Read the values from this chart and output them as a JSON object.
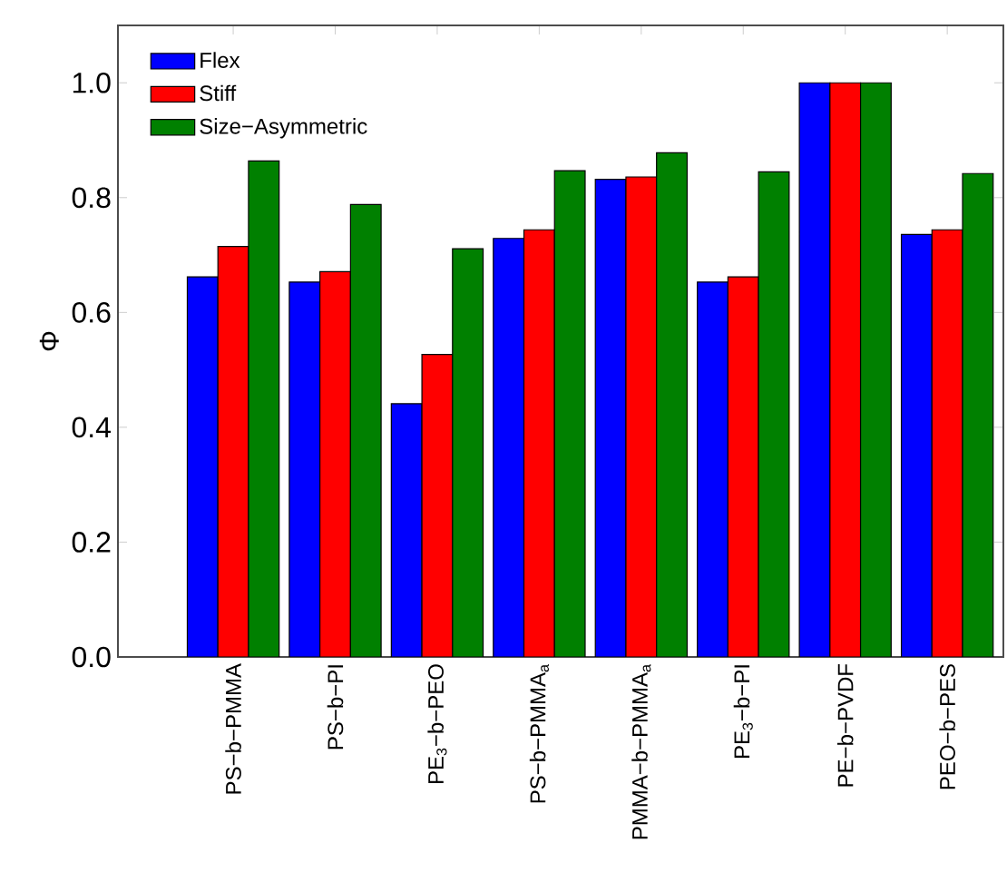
{
  "chart_data": {
    "type": "bar",
    "ylabel": "Φ",
    "categories": [
      "PS−b−PMMA",
      "PS−b−PI",
      "PE$_{3}$−b−PEO",
      "PS−b−PMMA$_{a}$",
      "PMMA−b−PMMA$_{a}$",
      "PE$_{3}$−b−PI",
      "PE−b−PVDF",
      "PEO−b−PES"
    ],
    "series": [
      {
        "name": "Flex",
        "color": "#0000ff",
        "values": [
          0.662,
          0.653,
          0.441,
          0.729,
          0.832,
          0.653,
          1.0,
          0.736
        ]
      },
      {
        "name": "Stiff",
        "color": "#ff0000",
        "values": [
          0.715,
          0.671,
          0.527,
          0.744,
          0.836,
          0.662,
          1.0,
          0.744
        ]
      },
      {
        "name": "Size−Asymmetric",
        "color": "#008000",
        "values": [
          0.864,
          0.788,
          0.711,
          0.847,
          0.878,
          0.845,
          1.0,
          0.842
        ]
      }
    ],
    "ylim": [
      0,
      1.1
    ],
    "yticks": [
      {
        "value": 0,
        "label": "0.0"
      },
      0.2,
      0.4,
      0.6,
      0.8,
      {
        "value": 1,
        "label": "1.0"
      }
    ],
    "legend": "top left",
    "grid": false
  }
}
